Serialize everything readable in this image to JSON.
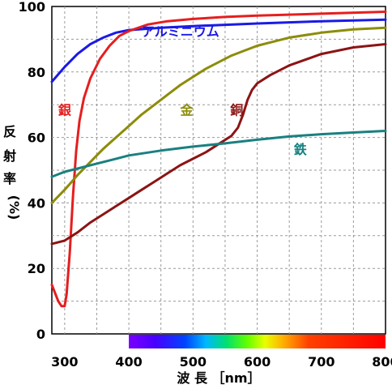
{
  "chart_data": {
    "type": "line",
    "xlabel": "波 長 ［nm］",
    "ylabel_chars": [
      "反",
      "射",
      "率",
      "(%)"
    ],
    "xlim": [
      280,
      800
    ],
    "ylim": [
      0,
      100
    ],
    "x_ticks": [
      300,
      400,
      500,
      600,
      700,
      800
    ],
    "y_ticks": [
      0,
      20,
      40,
      60,
      80,
      100
    ],
    "grid": true,
    "spectrum_bar_range": [
      400,
      800
    ],
    "series": [
      {
        "name": "アルミニウム",
        "color": "#1a1ae6",
        "label_at": [
          420,
          91
        ],
        "points": [
          [
            280,
            77
          ],
          [
            300,
            81.5
          ],
          [
            320,
            85.5
          ],
          [
            340,
            88.5
          ],
          [
            360,
            90.5
          ],
          [
            380,
            92
          ],
          [
            400,
            92.8
          ],
          [
            450,
            93.5
          ],
          [
            500,
            94
          ],
          [
            600,
            94.8
          ],
          [
            700,
            95.5
          ],
          [
            800,
            96
          ]
        ]
      },
      {
        "name": "銀",
        "color": "#e61e1e",
        "label_at": [
          290,
          67
        ],
        "points": [
          [
            280,
            15
          ],
          [
            290,
            10
          ],
          [
            295,
            8.5
          ],
          [
            300,
            8.5
          ],
          [
            303,
            12
          ],
          [
            308,
            25
          ],
          [
            313,
            42
          ],
          [
            318,
            56
          ],
          [
            323,
            65
          ],
          [
            330,
            72
          ],
          [
            340,
            78
          ],
          [
            355,
            84
          ],
          [
            370,
            88
          ],
          [
            385,
            91
          ],
          [
            400,
            92.5
          ],
          [
            430,
            94.5
          ],
          [
            460,
            95.5
          ],
          [
            500,
            96.2
          ],
          [
            550,
            96.8
          ],
          [
            600,
            97.2
          ],
          [
            700,
            97.8
          ],
          [
            800,
            98.4
          ]
        ]
      },
      {
        "name": "金",
        "color": "#8c8c0a",
        "label_at": [
          480,
          67
        ],
        "points": [
          [
            280,
            40
          ],
          [
            300,
            44
          ],
          [
            320,
            48.5
          ],
          [
            340,
            52.5
          ],
          [
            360,
            56.5
          ],
          [
            380,
            60
          ],
          [
            400,
            63.5
          ],
          [
            420,
            67
          ],
          [
            440,
            70
          ],
          [
            460,
            73
          ],
          [
            480,
            76
          ],
          [
            500,
            78.5
          ],
          [
            520,
            81
          ],
          [
            540,
            83
          ],
          [
            560,
            85
          ],
          [
            580,
            86.5
          ],
          [
            600,
            88
          ],
          [
            620,
            89
          ],
          [
            650,
            90.5
          ],
          [
            700,
            92
          ],
          [
            750,
            93
          ],
          [
            800,
            93.5
          ]
        ]
      },
      {
        "name": "銅",
        "color": "#8c1414",
        "label_at": [
          558,
          67
        ],
        "points": [
          [
            280,
            27.5
          ],
          [
            300,
            28.5
          ],
          [
            320,
            31
          ],
          [
            340,
            34
          ],
          [
            360,
            36.5
          ],
          [
            380,
            39
          ],
          [
            400,
            41.5
          ],
          [
            420,
            44
          ],
          [
            440,
            46.5
          ],
          [
            460,
            49
          ],
          [
            480,
            51.5
          ],
          [
            500,
            53.5
          ],
          [
            520,
            55.5
          ],
          [
            540,
            58
          ],
          [
            560,
            60.5
          ],
          [
            570,
            63
          ],
          [
            578,
            67
          ],
          [
            585,
            71.5
          ],
          [
            592,
            74.5
          ],
          [
            600,
            76.5
          ],
          [
            620,
            79
          ],
          [
            650,
            82
          ],
          [
            700,
            85.5
          ],
          [
            750,
            87.5
          ],
          [
            800,
            88.5
          ]
        ]
      },
      {
        "name": "鉄",
        "color": "#1a8080",
        "label_at": [
          657,
          55
        ],
        "points": [
          [
            280,
            48
          ],
          [
            300,
            49.5
          ],
          [
            320,
            50.5
          ],
          [
            340,
            51.5
          ],
          [
            360,
            52.5
          ],
          [
            380,
            53.5
          ],
          [
            400,
            54.5
          ],
          [
            450,
            56
          ],
          [
            500,
            57.2
          ],
          [
            550,
            58.2
          ],
          [
            600,
            59.3
          ],
          [
            650,
            60.3
          ],
          [
            700,
            61
          ],
          [
            750,
            61.5
          ],
          [
            800,
            62
          ]
        ]
      }
    ]
  }
}
